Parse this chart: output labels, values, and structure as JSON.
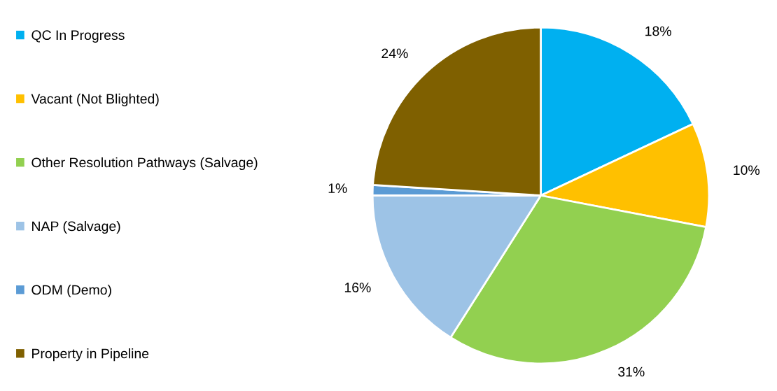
{
  "chart_data": {
    "type": "pie",
    "categories": [
      "QC In Progress",
      "Vacant (Not Blighted)",
      "Other Resolution Pathways (Salvage)",
      "NAP (Salvage)",
      "ODM (Demo)",
      "Property in Pipeline"
    ],
    "values": [
      18,
      10,
      31,
      16,
      1,
      24
    ],
    "colors": [
      "#00b0f0",
      "#ffc000",
      "#92d050",
      "#9dc3e6",
      "#5b9bd5",
      "#7f6000"
    ],
    "value_labels": [
      "18%",
      "10%",
      "31%",
      "16%",
      "1%",
      "24%"
    ],
    "legend": "left"
  }
}
